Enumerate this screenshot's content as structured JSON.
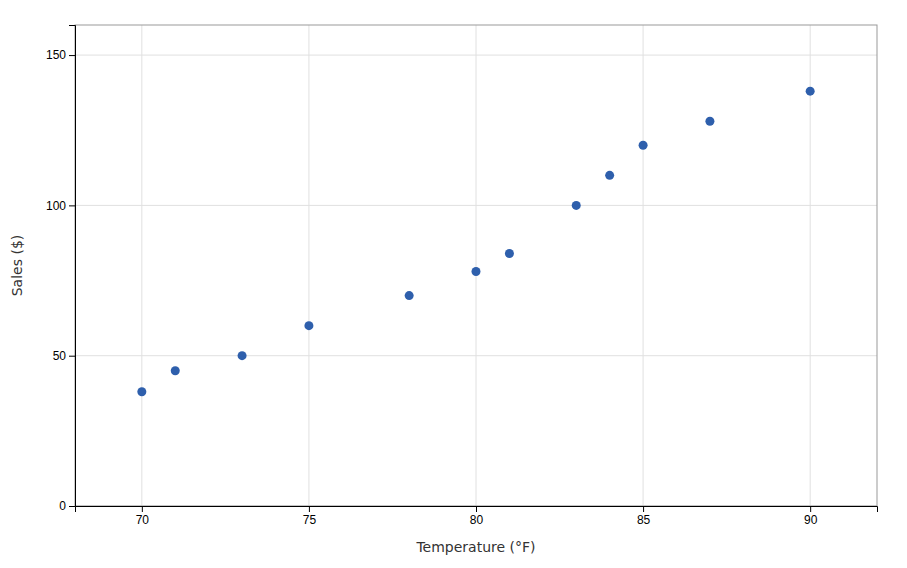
{
  "chart_data": {
    "type": "scatter",
    "x": [
      70,
      71,
      73,
      75,
      78,
      80,
      81,
      83,
      84,
      85,
      87,
      90
    ],
    "values": [
      38,
      45,
      50,
      60,
      70,
      78,
      84,
      100,
      110,
      120,
      128,
      138
    ],
    "xlabel": "Temperature (°F)",
    "ylabel": "Sales ($)",
    "xlim": [
      68,
      92
    ],
    "ylim": [
      0,
      160
    ],
    "xticks": [
      70,
      75,
      80,
      85,
      90
    ],
    "yticks": [
      0,
      50,
      100,
      150
    ],
    "color": "#2E5FAC",
    "grid": true
  }
}
